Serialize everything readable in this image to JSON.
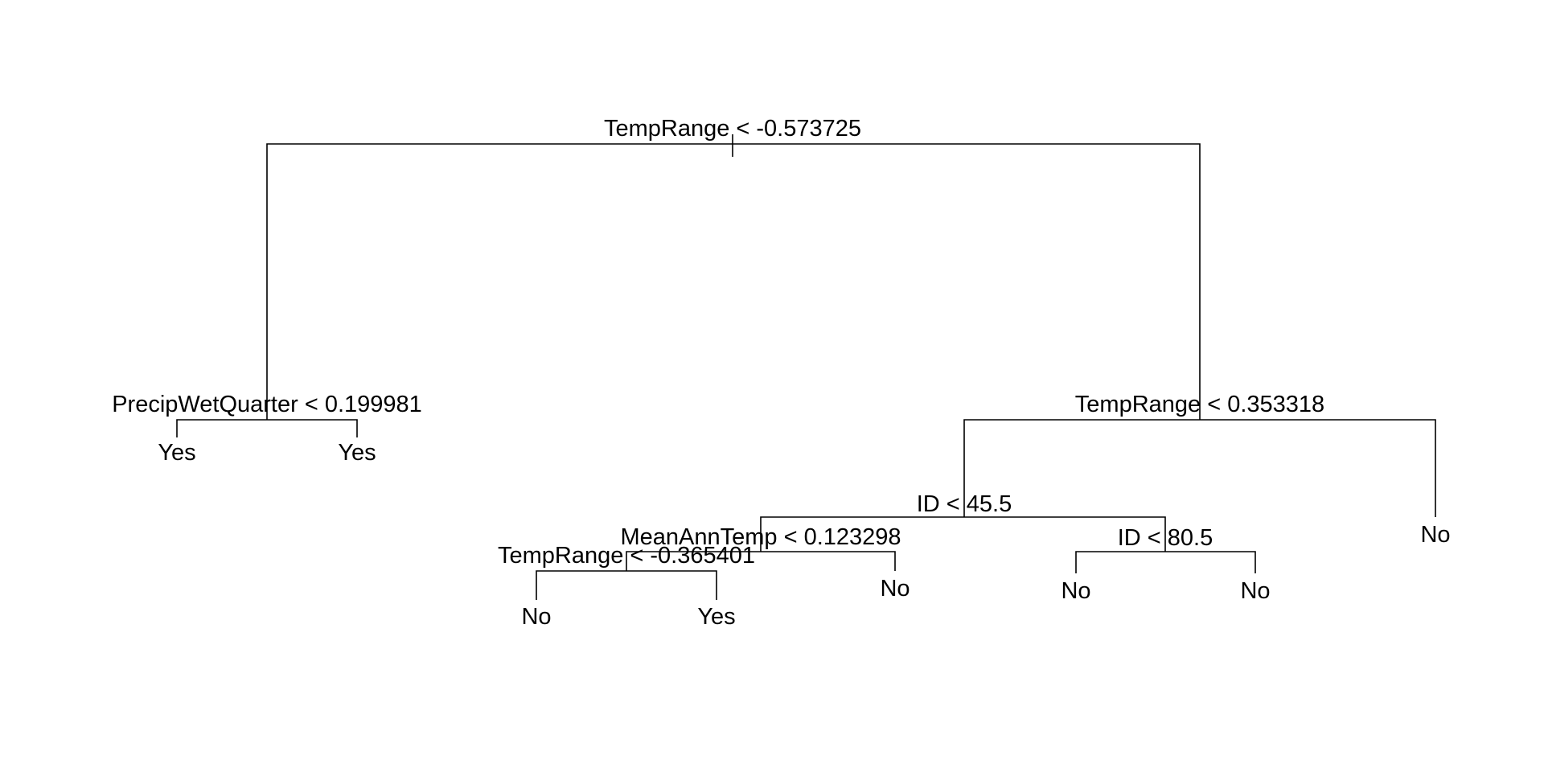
{
  "tree": {
    "root_split": "TempRange < -0.573725",
    "nodes": {
      "left_split": "PrecipWetQuarter < 0.199981",
      "left_leaf_1": "Yes",
      "left_leaf_2": "Yes",
      "right_split": "TempRange < 0.353318",
      "right_right_leaf": "No",
      "id_split_1": "ID < 45.5",
      "meanann_split": "MeanAnnTemp < 0.123298",
      "temprange_split_3": "TempRange < -0.365401",
      "leaf_no_a": "No",
      "leaf_yes_b": "Yes",
      "leaf_no_c": "No",
      "id_split_2": "ID < 80.5",
      "leaf_no_d": "No",
      "leaf_no_e": "No"
    }
  }
}
